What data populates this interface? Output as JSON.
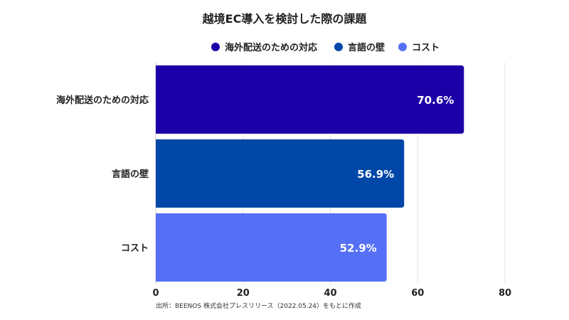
{
  "chart_data": {
    "type": "bar",
    "orientation": "horizontal",
    "title": "越境EC導入を検討した際の課題",
    "categories": [
      "海外配送のための対応",
      "言語の壁",
      "コスト"
    ],
    "values": [
      70.6,
      56.9,
      52.9
    ],
    "value_labels": [
      "70.6%",
      "56.9%",
      "52.9%"
    ],
    "colors": [
      "#1b00a8",
      "#0047a8",
      "#5570f7"
    ],
    "xlim": [
      0,
      80
    ],
    "xticks": [
      0,
      20,
      40,
      60,
      80
    ],
    "grid": true,
    "legend": {
      "placement": "top-right",
      "entries": [
        {
          "label": "海外配送のための対応",
          "color": "#1b00a8"
        },
        {
          "label": "言語の壁",
          "color": "#0047a8"
        },
        {
          "label": "コスト",
          "color": "#5570f7"
        }
      ]
    },
    "source": "出所：BEENOS 株式会社プレスリリース（2022.05.24）をもとに作成"
  }
}
